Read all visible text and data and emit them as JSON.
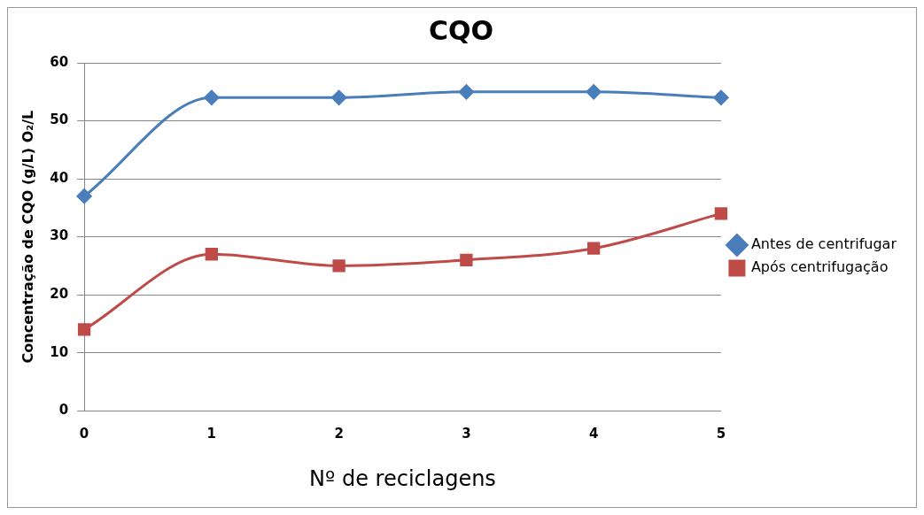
{
  "chart_data": {
    "type": "line",
    "title": "CQO",
    "xlabel": "Nº de reciclagens",
    "ylabel": "Concentração de CQO (g/L) O₂/L",
    "categories": [
      "0",
      "1",
      "2",
      "3",
      "4",
      "5"
    ],
    "series": [
      {
        "name": "Antes de centrifugar",
        "color": "#4a7ebb",
        "marker": "diamond",
        "values": [
          37,
          54,
          54,
          55,
          55,
          54
        ]
      },
      {
        "name": "Após centrifugação",
        "color": "#be4b48",
        "marker": "square",
        "values": [
          14,
          27,
          25,
          26,
          28,
          34
        ]
      }
    ],
    "ylim": [
      0,
      60
    ],
    "yticks": [
      0,
      10,
      20,
      30,
      40,
      50,
      60
    ],
    "grid": "y",
    "legend": "right",
    "line_style": "solid"
  }
}
